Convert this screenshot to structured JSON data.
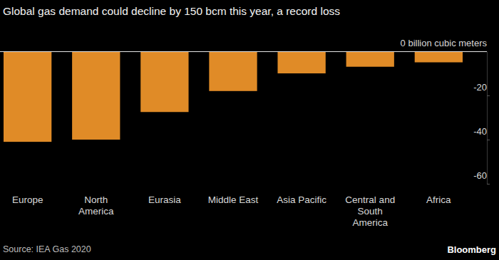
{
  "chart_data": {
    "type": "bar",
    "title": "Global gas demand could decline by 150 bcm this year, a record loss",
    "categories": [
      "Europe",
      "North America",
      "Eurasia",
      "Middle East",
      "Asia Pacific",
      "Central and South America",
      "Africa"
    ],
    "values": [
      -41,
      -40,
      -27.5,
      -18,
      -10,
      -7,
      -5
    ],
    "color": "#e08b27",
    "ylim": [
      -60,
      0
    ],
    "yticks": [
      {
        "value": 0,
        "label": "0 billion cubic meters"
      },
      -20,
      -40,
      -60
    ],
    "grid": false,
    "source": "Source: IEA Gas 2020",
    "credit": "Bloomberg"
  }
}
